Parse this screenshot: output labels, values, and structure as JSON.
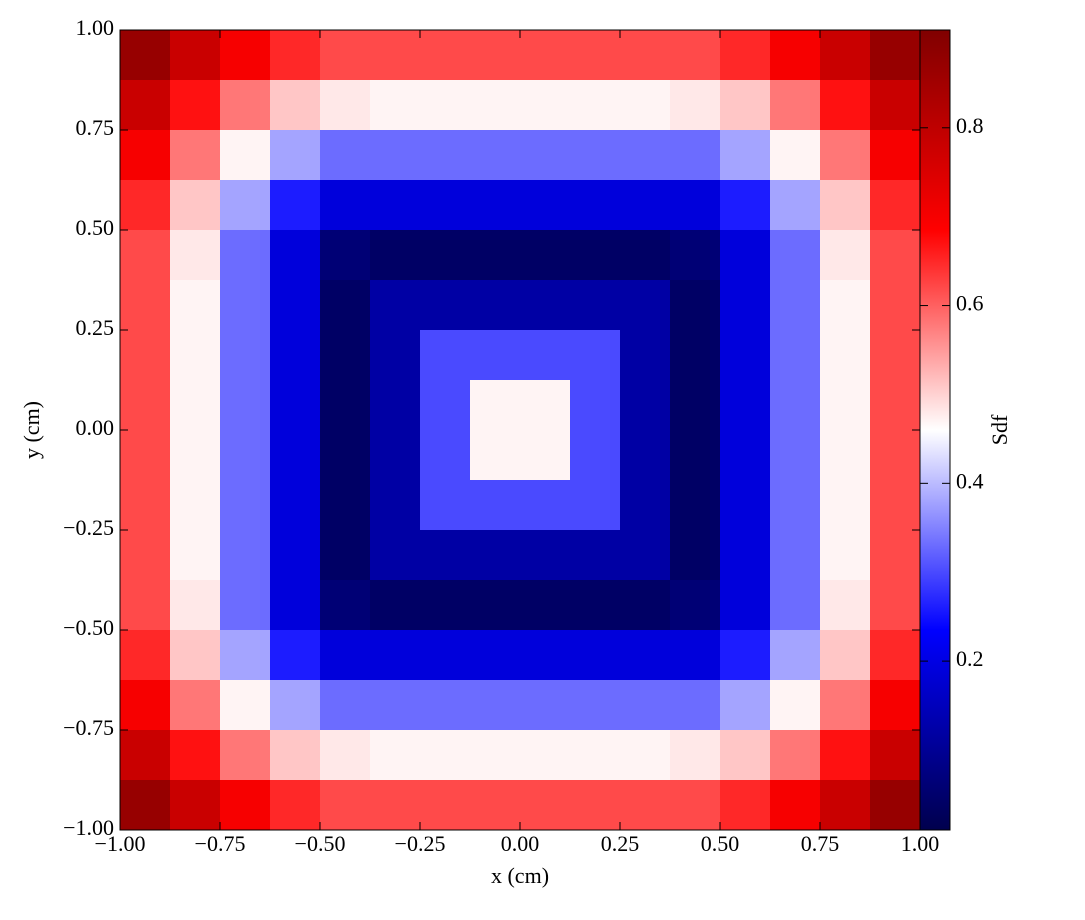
{
  "chart_data": {
    "type": "heatmap",
    "xlabel": "x  (cm)",
    "ylabel": "y  (cm)",
    "xlim": [
      -1,
      1
    ],
    "ylim": [
      -1,
      1
    ],
    "xticks": [
      {
        "value": -1,
        "label": "−1.00"
      },
      {
        "value": -0.75,
        "label": "−0.75"
      },
      {
        "value": -0.5,
        "label": "−0.50"
      },
      {
        "value": -0.25,
        "label": "−0.25"
      },
      {
        "value": 0,
        "label": "0.00"
      },
      0.25,
      {
        "value": 0.5,
        "label": "0.50"
      },
      0.75,
      {
        "value": 1,
        "label": "1.00"
      }
    ],
    "yticks": [
      {
        "value": -1,
        "label": "−1.00"
      },
      {
        "value": -0.75,
        "label": "−0.75"
      },
      {
        "value": -0.5,
        "label": "−0.50"
      },
      {
        "value": -0.25,
        "label": "−0.25"
      },
      {
        "value": 0,
        "label": "0.00"
      },
      0.25,
      {
        "value": 0.5,
        "label": "0.50"
      },
      0.75,
      {
        "value": 1,
        "label": "1.00"
      }
    ],
    "colormap": "seismic",
    "colorbar": {
      "label": "Sdf",
      "lim": [
        0.01,
        0.91
      ],
      "ticks": [
        0.2,
        0.4,
        0.6,
        0.8
      ]
    },
    "z": [
      [
        0.87,
        0.78,
        0.7,
        0.65,
        0.62,
        0.62,
        0.62,
        0.62,
        0.62,
        0.62,
        0.62,
        0.62,
        0.65,
        0.7,
        0.78,
        0.87
      ],
      [
        0.78,
        0.67,
        0.58,
        0.51,
        0.48,
        0.47,
        0.47,
        0.47,
        0.47,
        0.47,
        0.47,
        0.48,
        0.51,
        0.58,
        0.67,
        0.78
      ],
      [
        0.7,
        0.58,
        0.47,
        0.38,
        0.33,
        0.33,
        0.33,
        0.33,
        0.33,
        0.33,
        0.33,
        0.33,
        0.38,
        0.47,
        0.58,
        0.7
      ],
      [
        0.65,
        0.51,
        0.38,
        0.26,
        0.19,
        0.19,
        0.19,
        0.19,
        0.19,
        0.19,
        0.19,
        0.19,
        0.26,
        0.38,
        0.51,
        0.65
      ],
      [
        0.62,
        0.48,
        0.33,
        0.19,
        0.06,
        0.04,
        0.04,
        0.04,
        0.04,
        0.04,
        0.04,
        0.06,
        0.19,
        0.33,
        0.48,
        0.62
      ],
      [
        0.62,
        0.47,
        0.33,
        0.19,
        0.04,
        0.12,
        0.12,
        0.12,
        0.12,
        0.12,
        0.12,
        0.04,
        0.19,
        0.33,
        0.47,
        0.62
      ],
      [
        0.62,
        0.47,
        0.33,
        0.19,
        0.04,
        0.12,
        0.3,
        0.3,
        0.3,
        0.3,
        0.12,
        0.04,
        0.19,
        0.33,
        0.47,
        0.62
      ],
      [
        0.62,
        0.47,
        0.33,
        0.19,
        0.04,
        0.12,
        0.3,
        0.47,
        0.47,
        0.3,
        0.12,
        0.04,
        0.19,
        0.33,
        0.47,
        0.62
      ],
      [
        0.62,
        0.47,
        0.33,
        0.19,
        0.04,
        0.12,
        0.3,
        0.47,
        0.47,
        0.3,
        0.12,
        0.04,
        0.19,
        0.33,
        0.47,
        0.62
      ],
      [
        0.62,
        0.47,
        0.33,
        0.19,
        0.04,
        0.12,
        0.3,
        0.3,
        0.3,
        0.3,
        0.12,
        0.04,
        0.19,
        0.33,
        0.47,
        0.62
      ],
      [
        0.62,
        0.47,
        0.33,
        0.19,
        0.04,
        0.12,
        0.12,
        0.12,
        0.12,
        0.12,
        0.12,
        0.04,
        0.19,
        0.33,
        0.47,
        0.62
      ],
      [
        0.62,
        0.48,
        0.33,
        0.19,
        0.06,
        0.04,
        0.04,
        0.04,
        0.04,
        0.04,
        0.04,
        0.06,
        0.19,
        0.33,
        0.48,
        0.62
      ],
      [
        0.65,
        0.51,
        0.38,
        0.26,
        0.19,
        0.19,
        0.19,
        0.19,
        0.19,
        0.19,
        0.19,
        0.19,
        0.26,
        0.38,
        0.51,
        0.65
      ],
      [
        0.7,
        0.58,
        0.47,
        0.38,
        0.33,
        0.33,
        0.33,
        0.33,
        0.33,
        0.33,
        0.33,
        0.33,
        0.38,
        0.47,
        0.58,
        0.7
      ],
      [
        0.78,
        0.67,
        0.58,
        0.51,
        0.48,
        0.47,
        0.47,
        0.47,
        0.47,
        0.47,
        0.47,
        0.48,
        0.51,
        0.58,
        0.67,
        0.78
      ],
      [
        0.87,
        0.78,
        0.7,
        0.65,
        0.62,
        0.62,
        0.62,
        0.62,
        0.62,
        0.62,
        0.62,
        0.62,
        0.65,
        0.7,
        0.78,
        0.87
      ]
    ]
  }
}
